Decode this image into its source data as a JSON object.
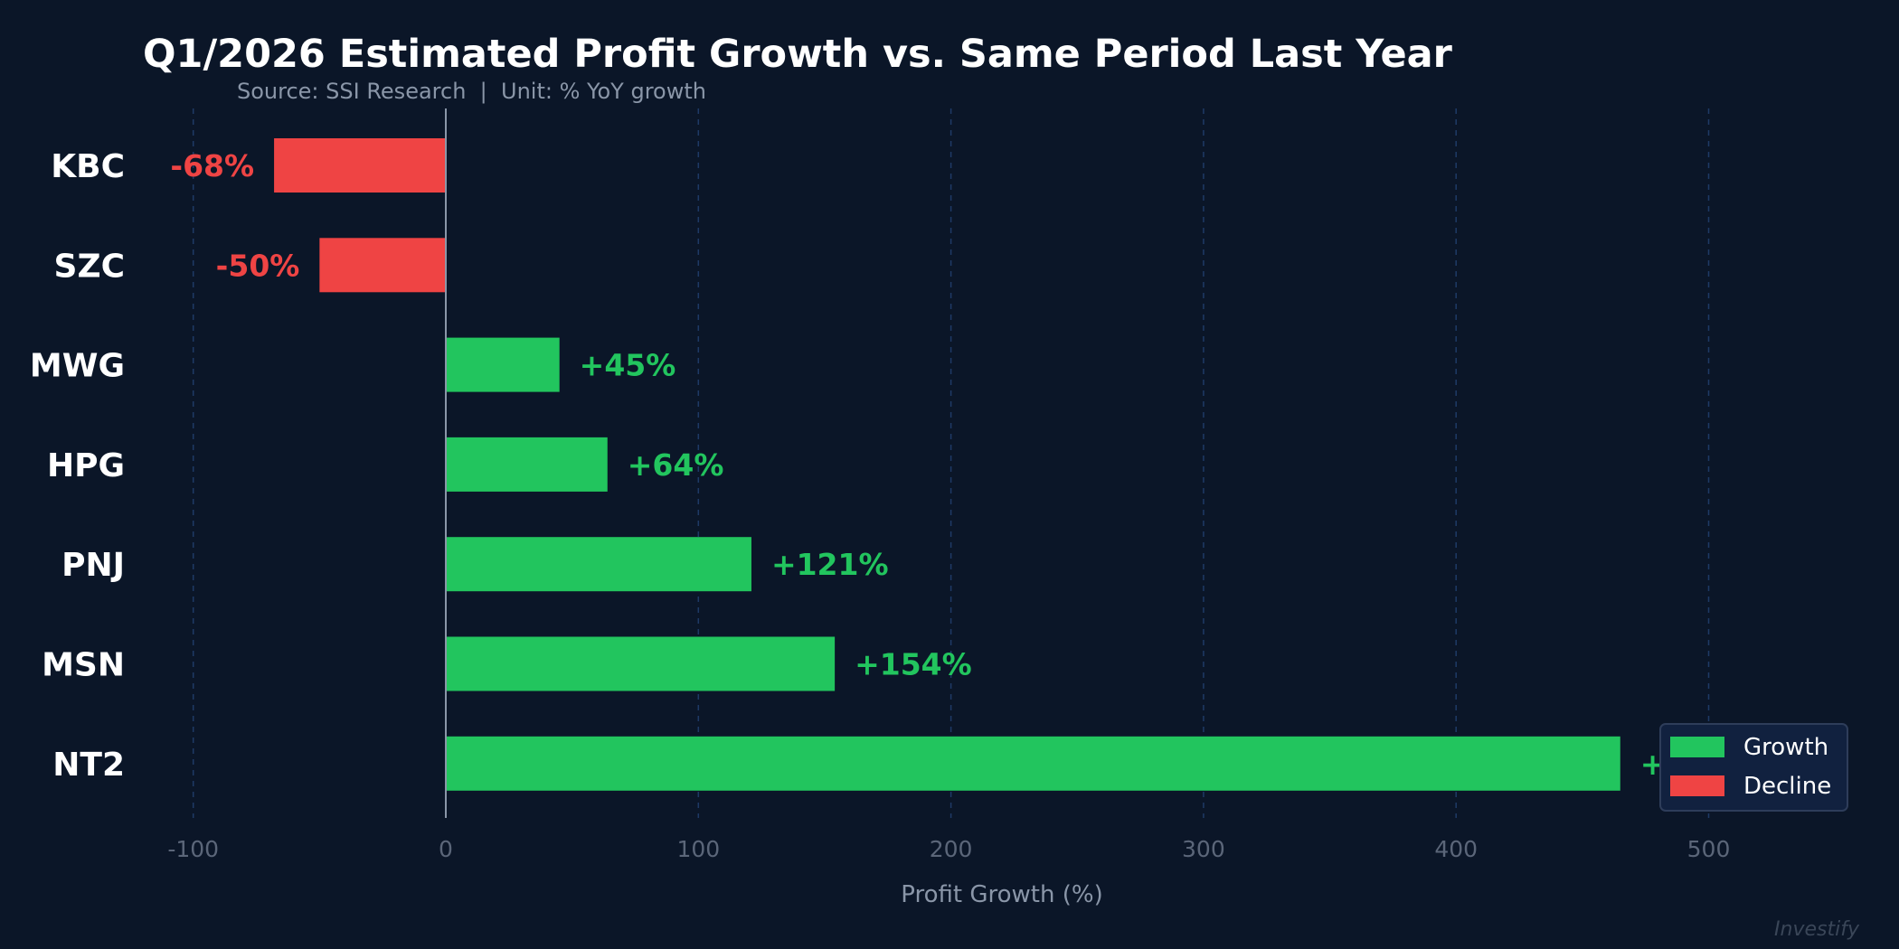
{
  "chart_data": {
    "type": "bar",
    "orientation": "horizontal",
    "title": "Q1/2026 Estimated Profit Growth vs. Same Period Last Year",
    "subtitle": "Source: SSI Research  |  Unit: % YoY growth",
    "xlabel": "Profit Growth (%)",
    "ylabel": "",
    "xlim": [
      -110,
      550
    ],
    "xticks": [
      -100,
      0,
      100,
      200,
      300,
      400,
      500
    ],
    "grid": true,
    "categories": [
      "KBC",
      "SZC",
      "MWG",
      "HPG",
      "PNJ",
      "MSN",
      "NT2"
    ],
    "values": [
      -68,
      -50,
      45,
      64,
      121,
      154,
      465
    ],
    "data_labels": [
      "-68%",
      "-50%",
      "+45%",
      "+64%",
      "+121%",
      "+154%",
      "+465%"
    ],
    "legend": {
      "placement": "bottom-right",
      "entries": [
        {
          "label": "Growth",
          "color": "#22c55e"
        },
        {
          "label": "Decline",
          "color": "#ef4444"
        }
      ]
    },
    "colors": {
      "growth": "#22c55e",
      "decline": "#ef4444",
      "background": "#0b1628"
    },
    "watermark": "Investify"
  }
}
